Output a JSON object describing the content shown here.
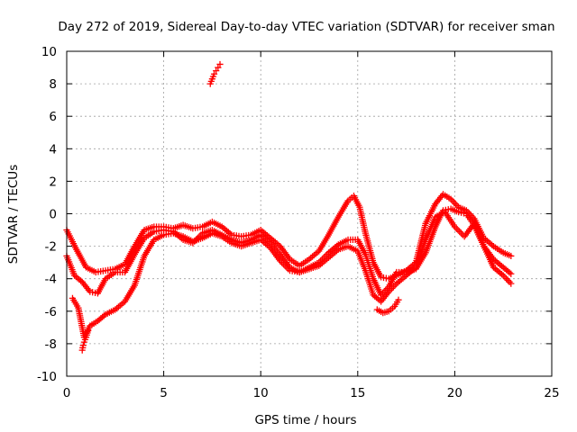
{
  "chart_data": {
    "type": "scatter",
    "title": "Day 272 of 2019, Sidereal Day-to-day VTEC variation (SDTVAR) for receiver sman",
    "xlabel": "GPS time / hours",
    "ylabel": "SDTVAR / TECUs",
    "xlim": [
      0,
      25
    ],
    "ylim": [
      -10,
      10
    ],
    "xticks": [
      0,
      5,
      10,
      15,
      20,
      25
    ],
    "yticks": [
      -10,
      -8,
      -6,
      -4,
      -2,
      0,
      2,
      4,
      6,
      8,
      10
    ],
    "grid": true,
    "marker": "+",
    "series_color": "#ff0000",
    "series": [
      {
        "name": "track-a",
        "x": [
          0.0,
          0.5,
          1.0,
          1.5,
          2.0,
          2.5,
          3.0,
          3.5,
          4.0,
          4.5,
          5.0,
          5.5,
          6.0,
          6.5,
          7.0,
          7.5,
          8.0,
          8.5,
          9.0,
          9.5,
          10.0,
          10.5,
          11.0,
          11.5,
          12.0,
          12.5,
          13.0,
          13.5,
          14.0,
          14.5,
          14.8,
          15.1,
          15.4,
          15.8,
          16.2,
          16.6,
          17.0,
          17.5,
          18.0,
          18.5,
          19.0,
          19.4,
          19.8,
          20.2,
          20.6,
          21.0,
          21.5,
          22.0,
          22.5,
          22.9
        ],
        "y": [
          -1.0,
          -2.2,
          -3.3,
          -3.6,
          -3.5,
          -3.4,
          -3.1,
          -2.0,
          -1.0,
          -0.8,
          -0.8,
          -0.9,
          -0.7,
          -0.9,
          -0.8,
          -0.5,
          -0.8,
          -1.3,
          -1.4,
          -1.3,
          -1.0,
          -1.5,
          -2.0,
          -2.8,
          -3.2,
          -2.8,
          -2.3,
          -1.3,
          -0.2,
          0.8,
          1.1,
          0.4,
          -1.2,
          -3.0,
          -3.9,
          -4.0,
          -3.8,
          -3.5,
          -3.0,
          -0.6,
          0.6,
          1.2,
          0.9,
          0.4,
          0.2,
          -0.3,
          -1.5,
          -2.0,
          -2.4,
          -2.6
        ]
      },
      {
        "name": "track-b",
        "x": [
          0.0,
          0.4,
          0.8,
          1.2,
          1.6,
          2.0,
          2.5,
          3.0,
          3.5,
          4.0,
          4.5,
          5.0,
          5.5,
          6.0,
          6.5,
          7.0,
          7.5,
          8.0,
          8.5,
          9.0,
          9.5,
          10.0,
          10.5,
          11.0,
          11.5,
          12.0,
          12.5,
          13.0,
          13.5,
          14.0,
          14.5,
          15.0,
          15.4,
          15.8,
          16.2,
          16.6,
          17.0,
          17.5,
          18.0,
          18.5,
          19.0,
          19.4,
          19.8,
          20.2,
          20.6,
          21.0,
          21.5,
          22.0,
          22.5,
          22.9
        ],
        "y": [
          -2.6,
          -3.8,
          -4.2,
          -4.8,
          -4.9,
          -4.0,
          -3.6,
          -3.6,
          -2.5,
          -1.5,
          -1.1,
          -1.0,
          -1.1,
          -1.6,
          -1.8,
          -1.2,
          -1.0,
          -1.3,
          -1.6,
          -1.8,
          -1.6,
          -1.3,
          -1.8,
          -2.5,
          -3.3,
          -3.6,
          -3.3,
          -3.0,
          -2.4,
          -1.9,
          -1.6,
          -1.6,
          -2.5,
          -4.0,
          -5.0,
          -4.5,
          -3.6,
          -3.6,
          -3.4,
          -2.4,
          -0.8,
          0.2,
          0.3,
          0.1,
          0.0,
          -0.7,
          -2.0,
          -2.8,
          -3.3,
          -3.7
        ]
      },
      {
        "name": "track-c",
        "x": [
          0.3,
          0.6,
          0.9,
          1.2,
          1.6,
          2.0,
          2.5,
          3.0,
          3.5,
          4.0,
          4.5,
          5.0,
          5.5,
          6.0,
          6.5,
          7.0,
          7.5,
          8.0,
          8.5,
          9.0,
          9.5,
          10.0,
          10.5,
          11.0,
          11.5,
          12.0,
          12.5,
          13.0,
          13.5,
          14.0,
          14.5,
          15.0,
          15.4,
          15.8,
          16.2,
          16.6,
          17.0,
          17.5,
          18.0,
          18.5,
          19.0,
          19.5,
          20.0,
          20.5,
          21.0,
          21.5,
          22.0,
          22.5,
          22.9
        ],
        "y": [
          -5.2,
          -5.8,
          -7.6,
          -6.9,
          -6.6,
          -6.2,
          -5.9,
          -5.4,
          -4.4,
          -2.6,
          -1.6,
          -1.3,
          -1.2,
          -1.4,
          -1.7,
          -1.5,
          -1.2,
          -1.4,
          -1.8,
          -2.0,
          -1.8,
          -1.6,
          -2.1,
          -2.9,
          -3.5,
          -3.6,
          -3.4,
          -3.2,
          -2.7,
          -2.2,
          -2.0,
          -2.3,
          -3.5,
          -5.0,
          -5.4,
          -4.8,
          -4.3,
          -3.8,
          -3.3,
          -1.6,
          -0.2,
          0.1,
          -0.8,
          -1.4,
          -0.6,
          -2.0,
          -3.3,
          -3.8,
          -4.3
        ]
      },
      {
        "name": "fragment-upper",
        "x": [
          7.4,
          7.5,
          7.6,
          7.7,
          7.8,
          7.9
        ],
        "y": [
          8.0,
          8.3,
          8.6,
          8.8,
          9.0,
          9.2
        ]
      },
      {
        "name": "fragment-low-left",
        "x": [
          0.8,
          0.85,
          0.9,
          1.0,
          1.1
        ],
        "y": [
          -8.4,
          -8.1,
          -7.9,
          -7.6,
          -7.2
        ]
      },
      {
        "name": "fragment-right-low",
        "x": [
          16.0,
          16.3,
          16.6,
          16.9,
          17.1
        ],
        "y": [
          -5.9,
          -6.1,
          -6.0,
          -5.7,
          -5.3
        ]
      }
    ]
  }
}
